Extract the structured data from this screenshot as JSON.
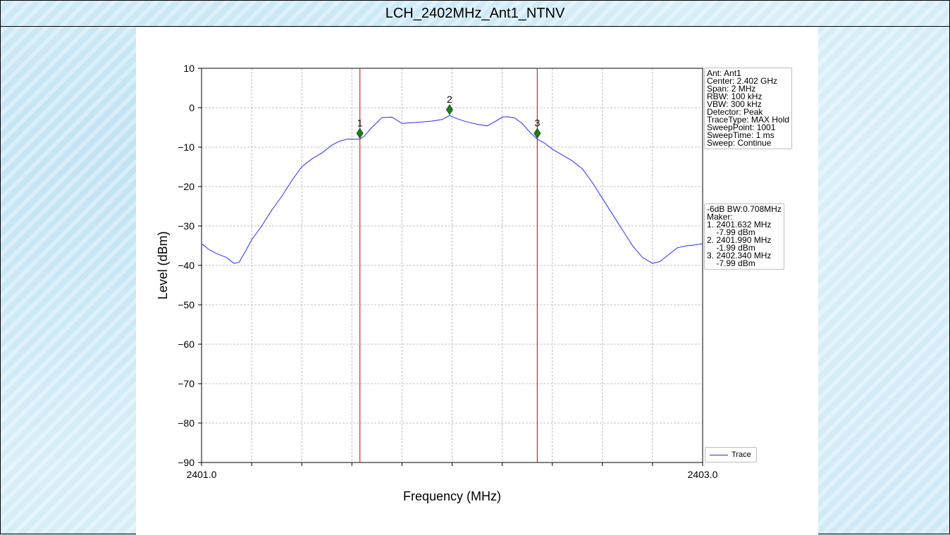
{
  "page": {
    "title": "LCH_2402MHz_Ant1_NTNV"
  },
  "settings": [
    "Ant: Ant1",
    "Center: 2.402 GHz",
    "Span: 2 MHz",
    "RBW: 100 kHz",
    "VBW: 300 kHz",
    "Detector: Peak",
    "TraceType: MAX Hold",
    "SweepPoint: 1001",
    "SweepTime: 1 ms",
    "Sweep: Continue"
  ],
  "results": [
    "-6dB BW:0.708MHz",
    "Maker:",
    "1. 2401.632 MHz",
    "    -7.99 dBm",
    "2. 2401.990 MHz",
    "    -1.99 dBm",
    "3. 2402.340 MHz",
    "    -7.99 dBm"
  ],
  "chart_data": {
    "type": "line",
    "xlabel": "Frequency (MHz)",
    "ylabel": "Level (dBm)",
    "xlim": [
      2401.0,
      2403.0
    ],
    "ylim": [
      -90,
      10
    ],
    "x_tick_labels": [
      {
        "value": 2401.0,
        "label": "2401.0"
      },
      {
        "value": 2403.0,
        "label": "2403.0"
      }
    ],
    "x_minor_ticks": [
      2401.2,
      2401.4,
      2401.6,
      2401.8,
      2402.0,
      2402.2,
      2402.4,
      2402.6,
      2402.8
    ],
    "y_ticks": [
      10,
      0,
      -10,
      -20,
      -30,
      -40,
      -50,
      -60,
      -70,
      -80,
      -90
    ],
    "y_tick_labels": [
      "10",
      "0",
      "−10",
      "−20",
      "−30",
      "−40",
      "−50",
      "−60",
      "−70",
      "−80",
      "−90"
    ],
    "grid": true,
    "legend": {
      "position": "bottom-right",
      "entries": [
        "Trace"
      ]
    },
    "series": [
      {
        "name": "Trace",
        "color": "#2a2aff",
        "x": [
          2401.0,
          2401.03,
          2401.06,
          2401.1,
          2401.13,
          2401.15,
          2401.17,
          2401.2,
          2401.24,
          2401.28,
          2401.32,
          2401.36,
          2401.4,
          2401.44,
          2401.48,
          2401.52,
          2401.55,
          2401.58,
          2401.61,
          2401.632,
          2401.65,
          2401.68,
          2401.72,
          2401.76,
          2401.8,
          2401.84,
          2401.88,
          2401.92,
          2401.96,
          2401.99,
          2402.02,
          2402.06,
          2402.1,
          2402.14,
          2402.18,
          2402.2,
          2402.22,
          2402.25,
          2402.28,
          2402.31,
          2402.34,
          2402.37,
          2402.4,
          2402.44,
          2402.48,
          2402.52,
          2402.56,
          2402.6,
          2402.64,
          2402.68,
          2402.72,
          2402.76,
          2402.8,
          2402.83,
          2402.86,
          2402.88,
          2402.9,
          2402.94,
          2402.97,
          2403.0
        ],
        "y": [
          -34.5,
          -36.0,
          -37.0,
          -38.0,
          -39.5,
          -39.2,
          -37.0,
          -33.5,
          -30.0,
          -26.0,
          -22.5,
          -18.5,
          -15.0,
          -13.0,
          -11.5,
          -9.5,
          -8.5,
          -8.0,
          -8.0,
          -7.99,
          -7.2,
          -5.0,
          -2.5,
          -2.4,
          -4.0,
          -3.8,
          -3.6,
          -3.4,
          -3.0,
          -1.99,
          -2.8,
          -3.6,
          -4.2,
          -4.6,
          -3.2,
          -2.4,
          -2.3,
          -2.6,
          -4.0,
          -6.2,
          -7.99,
          -9.0,
          -10.5,
          -12.0,
          -13.5,
          -15.5,
          -19.0,
          -23.0,
          -27.0,
          -31.0,
          -35.0,
          -38.0,
          -39.5,
          -39.0,
          -37.5,
          -36.5,
          -35.5,
          -35.0,
          -34.8,
          -34.5
        ]
      }
    ],
    "markers": [
      {
        "label": "1",
        "x": 2401.632,
        "y": -6.5
      },
      {
        "label": "2",
        "x": 2401.99,
        "y": -0.5
      },
      {
        "label": "3",
        "x": 2402.34,
        "y": -6.5
      }
    ],
    "bw_lines": [
      2401.632,
      2402.34
    ],
    "colors": {
      "trace": "#2a2aff",
      "bw_line": "#d62728",
      "marker": "#1b7d1b"
    }
  }
}
